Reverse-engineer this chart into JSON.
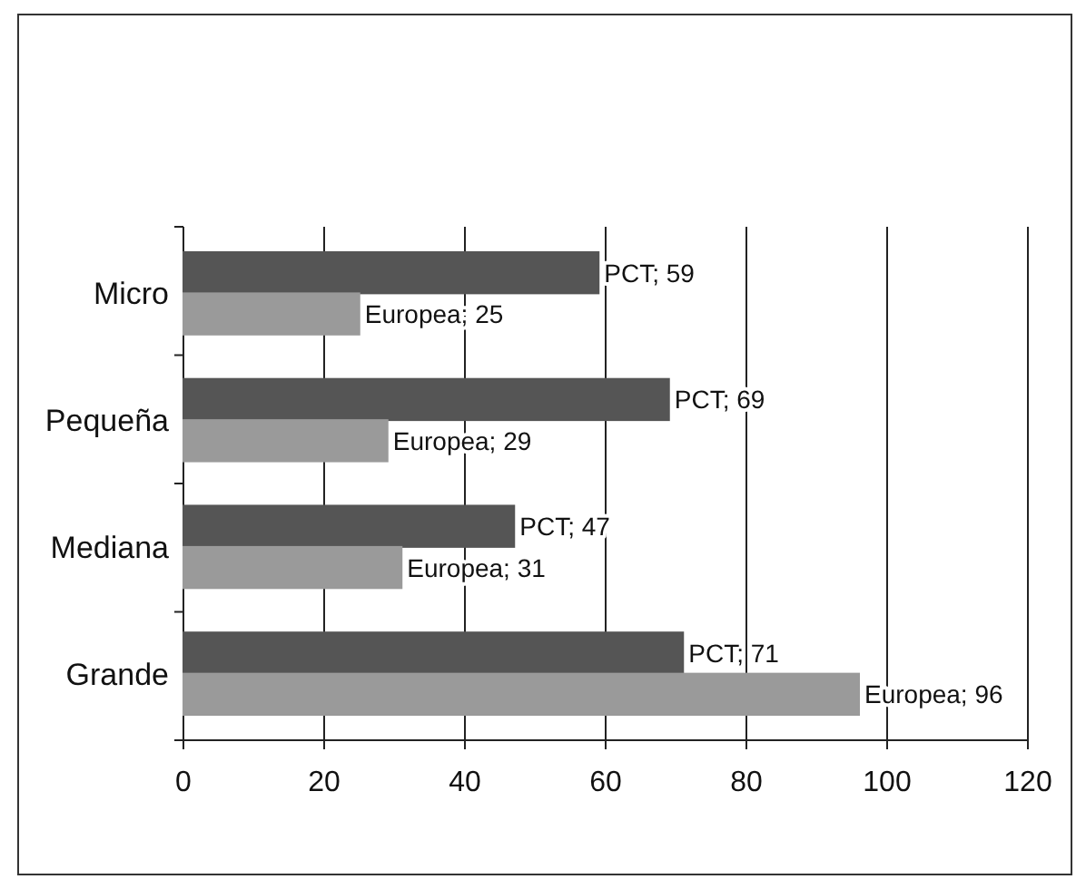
{
  "chart_data": {
    "type": "bar",
    "orientation": "horizontal",
    "categories": [
      "Micro",
      "Pequeña",
      "Mediana",
      "Grande"
    ],
    "series": [
      {
        "color": "#555555",
        "values": [
          59,
          69,
          47,
          71
        ],
        "value_labels": [
          "PCT; 59",
          "PCT; 69",
          "PCT; 47",
          "PCT; 71"
        ]
      },
      {
        "color": "#9a9a9a",
        "values": [
          25,
          29,
          31,
          96
        ],
        "value_labels": [
          "Europea; 25",
          "Europea; 29",
          "Europea; 31",
          "Europea; 96"
        ]
      }
    ],
    "xlim": [
      0,
      120
    ],
    "xticks": [
      0,
      20,
      40,
      60,
      80,
      100,
      120
    ],
    "grid": "x"
  }
}
